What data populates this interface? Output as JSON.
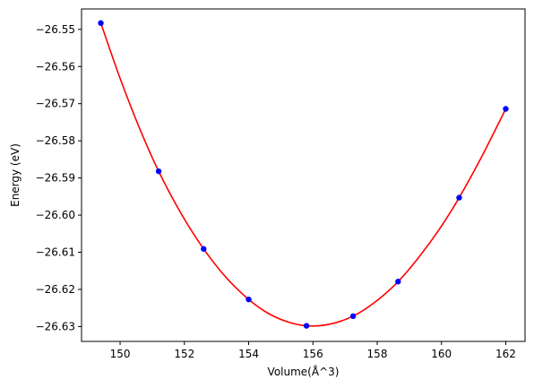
{
  "chart_data": {
    "type": "scatter",
    "title": "",
    "xlabel": "Volume(Å^3)",
    "ylabel": "Energy (eV)",
    "xlim": [
      148.8,
      162.6
    ],
    "ylim": [
      -26.634,
      -26.5445
    ],
    "grid": false,
    "legend": "none",
    "xticks": [
      150,
      152,
      154,
      156,
      158,
      160,
      162
    ],
    "xtick_labels": [
      "150",
      "152",
      "154",
      "156",
      "158",
      "160",
      "162"
    ],
    "yticks": [
      -26.55,
      -26.56,
      -26.57,
      -26.58,
      -26.59,
      -26.6,
      -26.61,
      -26.62,
      -26.63
    ],
    "ytick_labels": [
      "−26.55",
      "−26.56",
      "−26.57",
      "−26.58",
      "−26.59",
      "−26.60",
      "−26.61",
      "−26.62",
      "−26.63"
    ],
    "series": [
      {
        "kind": "points",
        "color": "#0000ff",
        "x": [
          149.4,
          151.2,
          152.6,
          154.0,
          155.8,
          157.25,
          158.65,
          160.55,
          162.0
        ],
        "y": [
          -26.5483,
          -26.5882,
          -26.6091,
          -26.6227,
          -26.6298,
          -26.6272,
          -26.6179,
          -26.5953,
          -26.5714
        ]
      },
      {
        "kind": "fit-curve",
        "color": "#ff0000",
        "x": [
          149.4,
          150.0,
          150.6,
          151.2,
          151.9,
          152.6,
          153.3,
          154.0,
          154.6,
          155.2,
          155.8,
          156.5,
          157.25,
          157.95,
          158.65,
          159.3,
          159.95,
          160.55,
          161.25,
          162.0
        ],
        "y": [
          -26.5483,
          -26.5632,
          -26.5765,
          -26.5882,
          -26.5996,
          -26.6091,
          -26.6168,
          -26.6227,
          -26.6264,
          -26.6287,
          -26.6298,
          -26.6294,
          -26.6272,
          -26.6233,
          -26.6179,
          -26.6113,
          -26.6036,
          -26.5953,
          -26.5843,
          -26.5714
        ]
      }
    ]
  }
}
